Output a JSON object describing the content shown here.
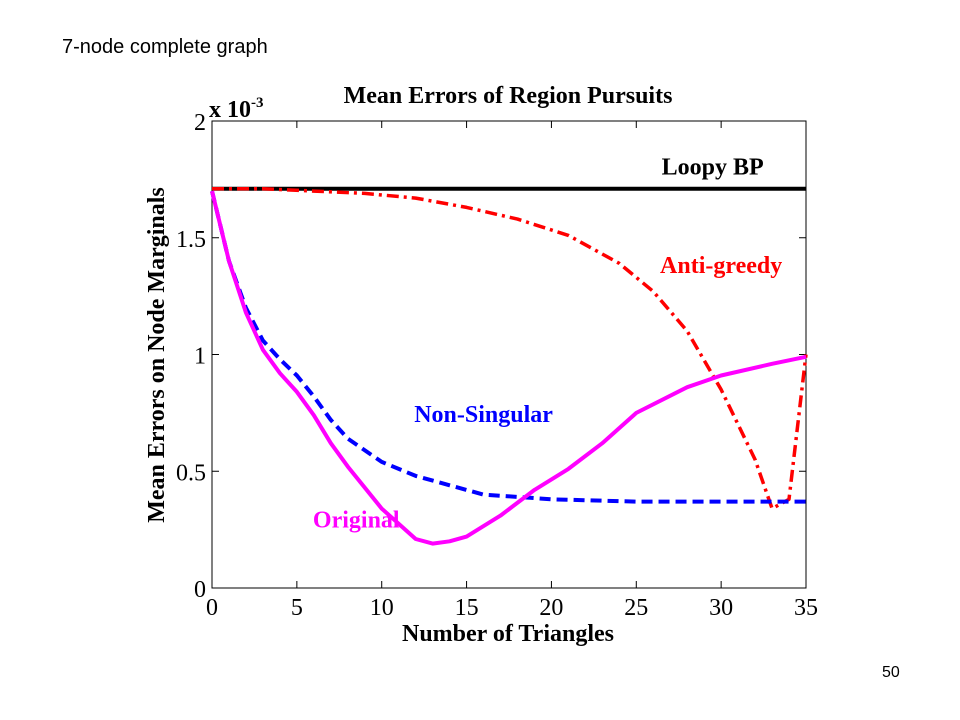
{
  "slide": {
    "title": "7-node complete graph",
    "page_number": "50"
  },
  "chart_data": {
    "type": "line",
    "title": "Mean Errors of Region Pursuits",
    "xlabel": "Number of Triangles",
    "ylabel": "Mean Errors on Node Marginals",
    "y_scale_label": "x 10",
    "y_scale_exponent": "-3",
    "xlim": [
      0,
      35
    ],
    "ylim": [
      0,
      2
    ],
    "xticks": [
      0,
      5,
      10,
      15,
      20,
      25,
      30,
      35
    ],
    "yticks": [
      0,
      0.5,
      1,
      1.5,
      2
    ],
    "ytick_labels": [
      "0",
      "0.5",
      "1",
      "1.5",
      "2"
    ],
    "grid": false,
    "series": [
      {
        "name": "Loopy BP",
        "color": "#000000",
        "style": "solid",
        "x": [
          0,
          35
        ],
        "y": [
          1.71,
          1.71
        ]
      },
      {
        "name": "Anti-greedy",
        "color": "#ff0000",
        "style": "dashdot",
        "x": [
          0,
          3,
          6,
          9,
          12,
          15,
          18,
          21,
          24,
          26,
          28,
          30,
          32,
          33,
          34,
          35
        ],
        "y": [
          1.71,
          1.71,
          1.7,
          1.69,
          1.67,
          1.63,
          1.58,
          1.51,
          1.39,
          1.27,
          1.1,
          0.85,
          0.55,
          0.34,
          0.38,
          1.0
        ]
      },
      {
        "name": "Non-Singular",
        "color": "#0000ff",
        "style": "dashed",
        "x": [
          0,
          1,
          2,
          3,
          4,
          5,
          6,
          7,
          8,
          10,
          12,
          14,
          16,
          18,
          20,
          25,
          30,
          35
        ],
        "y": [
          1.7,
          1.4,
          1.2,
          1.06,
          0.98,
          0.91,
          0.82,
          0.72,
          0.64,
          0.54,
          0.48,
          0.44,
          0.4,
          0.39,
          0.38,
          0.37,
          0.37,
          0.37
        ]
      },
      {
        "name": "Original",
        "color": "#ff00ff",
        "style": "solid",
        "x": [
          0,
          1,
          2,
          3,
          4,
          5,
          6,
          7,
          8,
          10,
          12,
          13,
          14,
          15,
          17,
          19,
          21,
          23,
          25,
          28,
          30,
          33,
          35
        ],
        "y": [
          1.7,
          1.4,
          1.18,
          1.02,
          0.92,
          0.84,
          0.74,
          0.62,
          0.52,
          0.34,
          0.21,
          0.19,
          0.2,
          0.22,
          0.31,
          0.42,
          0.51,
          0.62,
          0.75,
          0.86,
          0.91,
          0.96,
          0.99
        ]
      }
    ],
    "annotations": [
      {
        "text": "Loopy BP",
        "color": "#000000",
        "x": 29.5,
        "y": 1.77
      },
      {
        "text": "Anti-greedy",
        "color": "#ff0000",
        "x": 30,
        "y": 1.35
      },
      {
        "text": "Non-Singular",
        "color": "#0000ff",
        "x": 16,
        "y": 0.71
      },
      {
        "text": "Original",
        "color": "#ff00ff",
        "x": 8.5,
        "y": 0.26
      }
    ]
  }
}
